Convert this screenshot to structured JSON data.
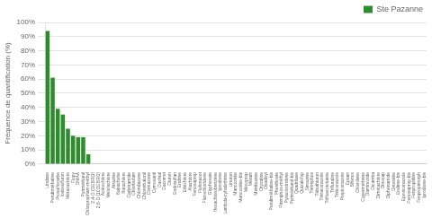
{
  "chart_data": {
    "type": "bar",
    "ylabel": "Fréquence de quantification (%)",
    "categories": [
      "Lindane",
      "Pendiméthaline",
      "Prosulfocarbe",
      "Iodosulfuron",
      "Métazachlore",
      "Flopy",
      "DMAA",
      "Pyriméthanil",
      "Chlorpropham-méthyl",
      "2,4-D (DEBRO)",
      "2,6-D (10DEBRO)",
      "Acétochlore",
      "Métolachlore",
      "Atrazine",
      "Babachone",
      "Butachlore",
      "Carbétamide",
      "Chlorbufam",
      "Chloridazone",
      "Chlorothalonil",
      "Clomazone",
      "Cymoxanil",
      "Dachtal",
      "Dazomet",
      "Diuron",
      "Endosulfan",
      "Endrine",
      "Erbichlore",
      "Alachlore",
      "Fenoxaprop",
      "Flufenacet",
      "Flurochloridone",
      "Glyphosate",
      "Hexachlorobenzène",
      "Iprodione",
      "Lambda-cyhalothrine",
      "Linuron",
      "Mancozèbe",
      "Mancozèbe-bis",
      "Mécoprop",
      "Métam",
      "Métribuzine",
      "Oryzaline",
      "Oxadixyl",
      "Pendiméthaline-bis",
      "Phenthoate",
      "Pirimiphos-méthyl",
      "Pyraclostrobine",
      "Pyriméthanil-bis",
      "Quadrilaxe",
      "Quizalofop",
      "Simazine",
      "Téméphos",
      "Tébuthiuron",
      "Tétraconazole",
      "Trifluorotoluène",
      "Trifluraline",
      "Triticonazole",
      "Propiconazole",
      "Eptam",
      "Bifenox",
      "Chlordane",
      "Cyperméthrine",
      "Daminozide",
      "Dicamba",
      "Dimétachlore",
      "Dinoxap",
      "Diphénamide",
      "Dinosèbe",
      "Endrine-bis",
      "Epoxiconazole",
      "Fenoxaprop-bis",
      "Fenpropidine",
      "Fenpropimorph",
      "Iprodione-bis"
    ],
    "series": [
      {
        "name": "Ste Pazanne",
        "color": "#2e8b2e",
        "values": [
          94,
          61,
          39,
          35,
          25,
          20,
          19,
          19,
          7,
          0,
          0,
          0,
          0,
          0,
          0,
          0,
          0,
          0,
          0,
          0,
          0,
          0,
          0,
          0,
          0,
          0,
          0,
          0,
          0,
          0,
          0,
          0,
          0,
          0,
          0,
          0,
          0,
          0,
          0,
          0,
          0,
          0,
          0,
          0,
          0,
          0,
          0,
          0,
          0,
          0,
          0,
          0,
          0,
          0,
          0,
          0,
          0,
          0,
          0,
          0,
          0,
          0,
          0,
          0,
          0,
          0,
          0,
          0,
          0,
          0,
          0,
          0,
          0,
          0,
          0
        ]
      }
    ],
    "ylim": [
      0,
      100
    ],
    "yticks": [
      {
        "value": 0,
        "label": "0%"
      },
      {
        "value": 10,
        "label": "10%"
      },
      {
        "value": 20,
        "label": "20%"
      },
      {
        "value": 30,
        "label": "30%"
      },
      {
        "value": 40,
        "label": "40%"
      },
      {
        "value": 50,
        "label": "50%"
      },
      {
        "value": 60,
        "label": "60%"
      },
      {
        "value": 70,
        "label": "70%"
      },
      {
        "value": 80,
        "label": "80%"
      },
      {
        "value": 90,
        "label": "90%"
      },
      {
        "value": 100,
        "label": "100%"
      }
    ],
    "grid": true,
    "legend": "upper right"
  }
}
